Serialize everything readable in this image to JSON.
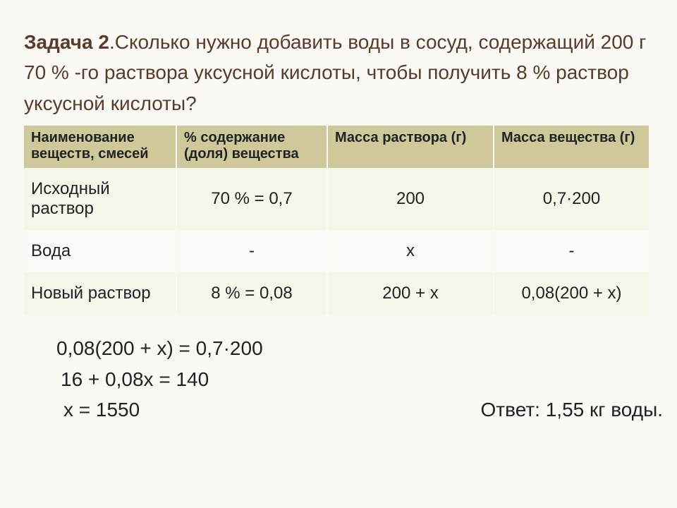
{
  "title": {
    "label": "Задача 2",
    "text": ".Сколько нужно добавить воды в сосуд, содержащий 200 г 70 % -го раствора уксусной кислоты, чтобы получить 8 % раствор уксусной кислоты?"
  },
  "table": {
    "columns": [
      "Наименование веществ, смесей",
      "% содержание (доля) вещества",
      "Масса раствора (г)",
      "Масса вещества (г)"
    ],
    "col_widths": [
      "216px",
      "214px",
      "236px",
      "220px"
    ],
    "header_bg": "#cec89a",
    "row_bg_odd": "#f7f6eb",
    "row_bg_even": "#fafaf6",
    "rows": [
      {
        "name": "Исходный раствор",
        "c1": "70 % = 0,7",
        "c2": "200",
        "c3": "0,7·200"
      },
      {
        "name": "Вода",
        "c1": "-",
        "c2": "х",
        "c3": "-"
      },
      {
        "name": "Новый раствор",
        "c1": "8 % = 0,08",
        "c2": "200 + х",
        "c3": "0,08(200 + х)"
      }
    ]
  },
  "work": {
    "line1": "0,08(200 + х) = 0,7·200",
    "line2": "16 + 0,08х = 140",
    "line3": "х = 1550",
    "answer": "Ответ: 1,55 кг воды."
  },
  "style": {
    "page_bg": "#faf9f4",
    "title_color": "#5a3a2a",
    "text_color": "#222222",
    "title_fontsize": 28,
    "header_fontsize": 20,
    "cell_fontsize": 24,
    "work_fontsize": 28
  }
}
